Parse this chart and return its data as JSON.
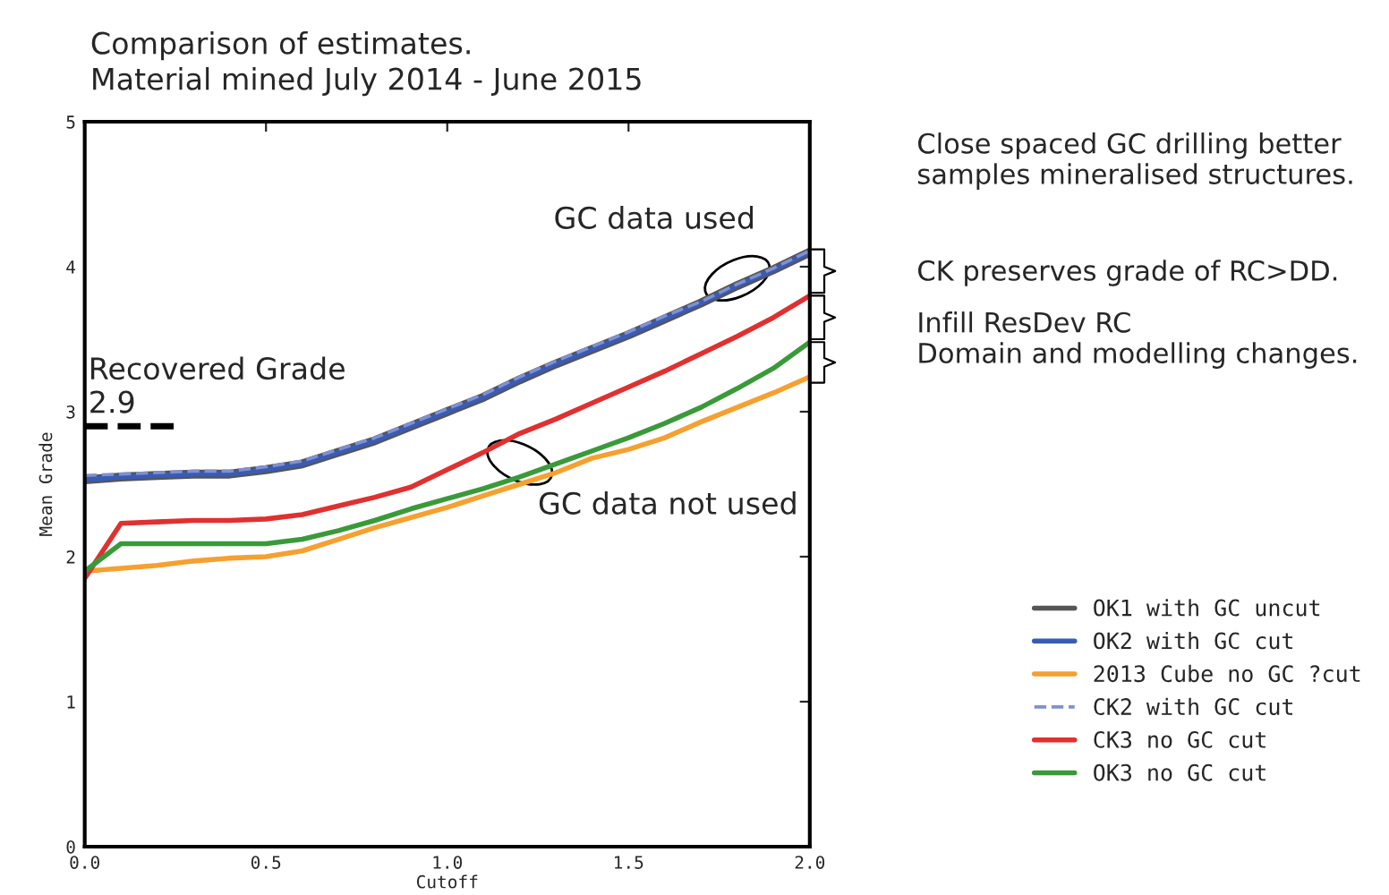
{
  "chart_data": {
    "type": "line",
    "title": "Comparison of estimates.",
    "subtitle": "Material mined July 2014 - June 2015",
    "xlabel": "Cutoff",
    "ylabel": "Mean Grade",
    "x": [
      0.0,
      0.1,
      0.2,
      0.3,
      0.4,
      0.5,
      0.6,
      0.7,
      0.8,
      0.9,
      1.0,
      1.1,
      1.2,
      1.3,
      1.4,
      1.5,
      1.6,
      1.7,
      1.8,
      1.9,
      2.0
    ],
    "series": [
      {
        "name": "OK1 with GC uncut",
        "color": "#555555",
        "line_style": "solid",
        "values": [
          2.53,
          2.55,
          2.56,
          2.57,
          2.57,
          2.6,
          2.64,
          2.72,
          2.8,
          2.9,
          3.0,
          3.1,
          3.22,
          3.33,
          3.43,
          3.53,
          3.64,
          3.75,
          3.87,
          3.98,
          4.1
        ]
      },
      {
        "name": "OK2 with GC cut",
        "color": "#3a5bb5",
        "line_style": "solid",
        "values": [
          2.53,
          2.55,
          2.56,
          2.57,
          2.57,
          2.6,
          2.64,
          2.72,
          2.8,
          2.9,
          3.0,
          3.1,
          3.22,
          3.33,
          3.43,
          3.53,
          3.64,
          3.75,
          3.87,
          3.98,
          4.1
        ]
      },
      {
        "name": "2013 Cube no GC ?cut",
        "color": "#f5a030",
        "line_style": "solid",
        "values": [
          1.9,
          1.92,
          1.94,
          1.97,
          1.99,
          2.0,
          2.04,
          2.12,
          2.2,
          2.27,
          2.34,
          2.42,
          2.5,
          2.58,
          2.68,
          2.74,
          2.82,
          2.93,
          3.03,
          3.13,
          3.24
        ]
      },
      {
        "name": "CK2 with GC cut",
        "color": "#8090d0",
        "line_style": "dashed",
        "values": [
          2.56,
          2.57,
          2.58,
          2.59,
          2.59,
          2.62,
          2.66,
          2.74,
          2.82,
          2.92,
          3.02,
          3.12,
          3.24,
          3.35,
          3.45,
          3.55,
          3.66,
          3.76,
          3.88,
          3.99,
          4.11
        ]
      },
      {
        "name": "CK3 no GC cut",
        "color": "#e03030",
        "line_style": "solid",
        "values": [
          1.85,
          2.23,
          2.24,
          2.25,
          2.25,
          2.26,
          2.29,
          2.35,
          2.41,
          2.48,
          2.6,
          2.72,
          2.85,
          2.95,
          3.06,
          3.17,
          3.28,
          3.4,
          3.52,
          3.65,
          3.8
        ]
      },
      {
        "name": "OK3 no GC cut",
        "color": "#3a9a3a",
        "line_style": "solid",
        "values": [
          1.9,
          2.09,
          2.09,
          2.09,
          2.09,
          2.09,
          2.12,
          2.18,
          2.25,
          2.33,
          2.4,
          2.47,
          2.55,
          2.64,
          2.73,
          2.82,
          2.92,
          3.03,
          3.16,
          3.3,
          3.48
        ]
      }
    ],
    "xlim": [
      0,
      2
    ],
    "ylim": [
      0,
      5
    ],
    "xticks": [
      {
        "value": 0,
        "label": "0.0"
      },
      {
        "value": 0.5,
        "label": "0.5"
      },
      {
        "value": 1,
        "label": "1.0"
      },
      {
        "value": 1.5,
        "label": "1.5"
      },
      {
        "value": 2,
        "label": "2.0"
      }
    ],
    "yticks": [
      0,
      1,
      2,
      3,
      4,
      5
    ],
    "ref_lines": [
      {
        "axis": "y",
        "value": 2.9,
        "label": "Recovered Grade\n2.9",
        "color": "#000000",
        "line_style": "dashed"
      }
    ],
    "annotations": [
      {
        "text": "GC data used",
        "x": 1.8,
        "y": 3.92
      },
      {
        "text": "GC data not used",
        "x": 1.2,
        "y": 2.65
      },
      "Close spaced GC drilling better\nsamples mineralised structures.",
      "CK preserves grade of RC>DD.",
      "Infill ResDev RC\nDomain and modelling changes."
    ],
    "legend": "bottom right",
    "grid": false,
    "marker": "none"
  }
}
